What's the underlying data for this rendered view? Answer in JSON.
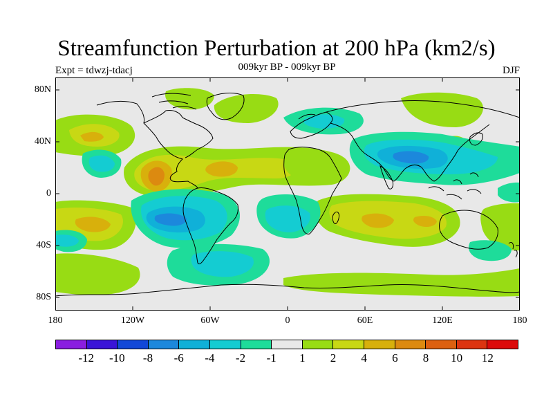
{
  "header": {
    "title": "Streamfunction Perturbation at 200 hPa (km2/s)",
    "subtitle": "009kyr BP - 009kyr BP",
    "left_label": "Expt = tdwzj-tdacj",
    "right_label": "DJF"
  },
  "axes": {
    "lat_labels": [
      "80N",
      "40N",
      "0",
      "40S",
      "80S"
    ],
    "lon_labels": [
      "180",
      "120W",
      "60W",
      "0",
      "60E",
      "120E",
      "180"
    ]
  },
  "colorbar": {
    "colors": [
      "#8a1ee0",
      "#3a14d8",
      "#1248d8",
      "#1c88dc",
      "#10b0d8",
      "#14ccd2",
      "#1edc9a",
      "#e8e8e8",
      "#98dc14",
      "#c8d814",
      "#d8b00c",
      "#dc8a10",
      "#dc6010",
      "#dc3410",
      "#dc0a0a"
    ],
    "labels": [
      "-12",
      "-10",
      "-8",
      "-6",
      "-4",
      "-2",
      "-1",
      "1",
      "2",
      "4",
      "6",
      "8",
      "10",
      "12"
    ]
  },
  "map": {
    "background": "#e8e8e8",
    "coastline": "#000000"
  }
}
